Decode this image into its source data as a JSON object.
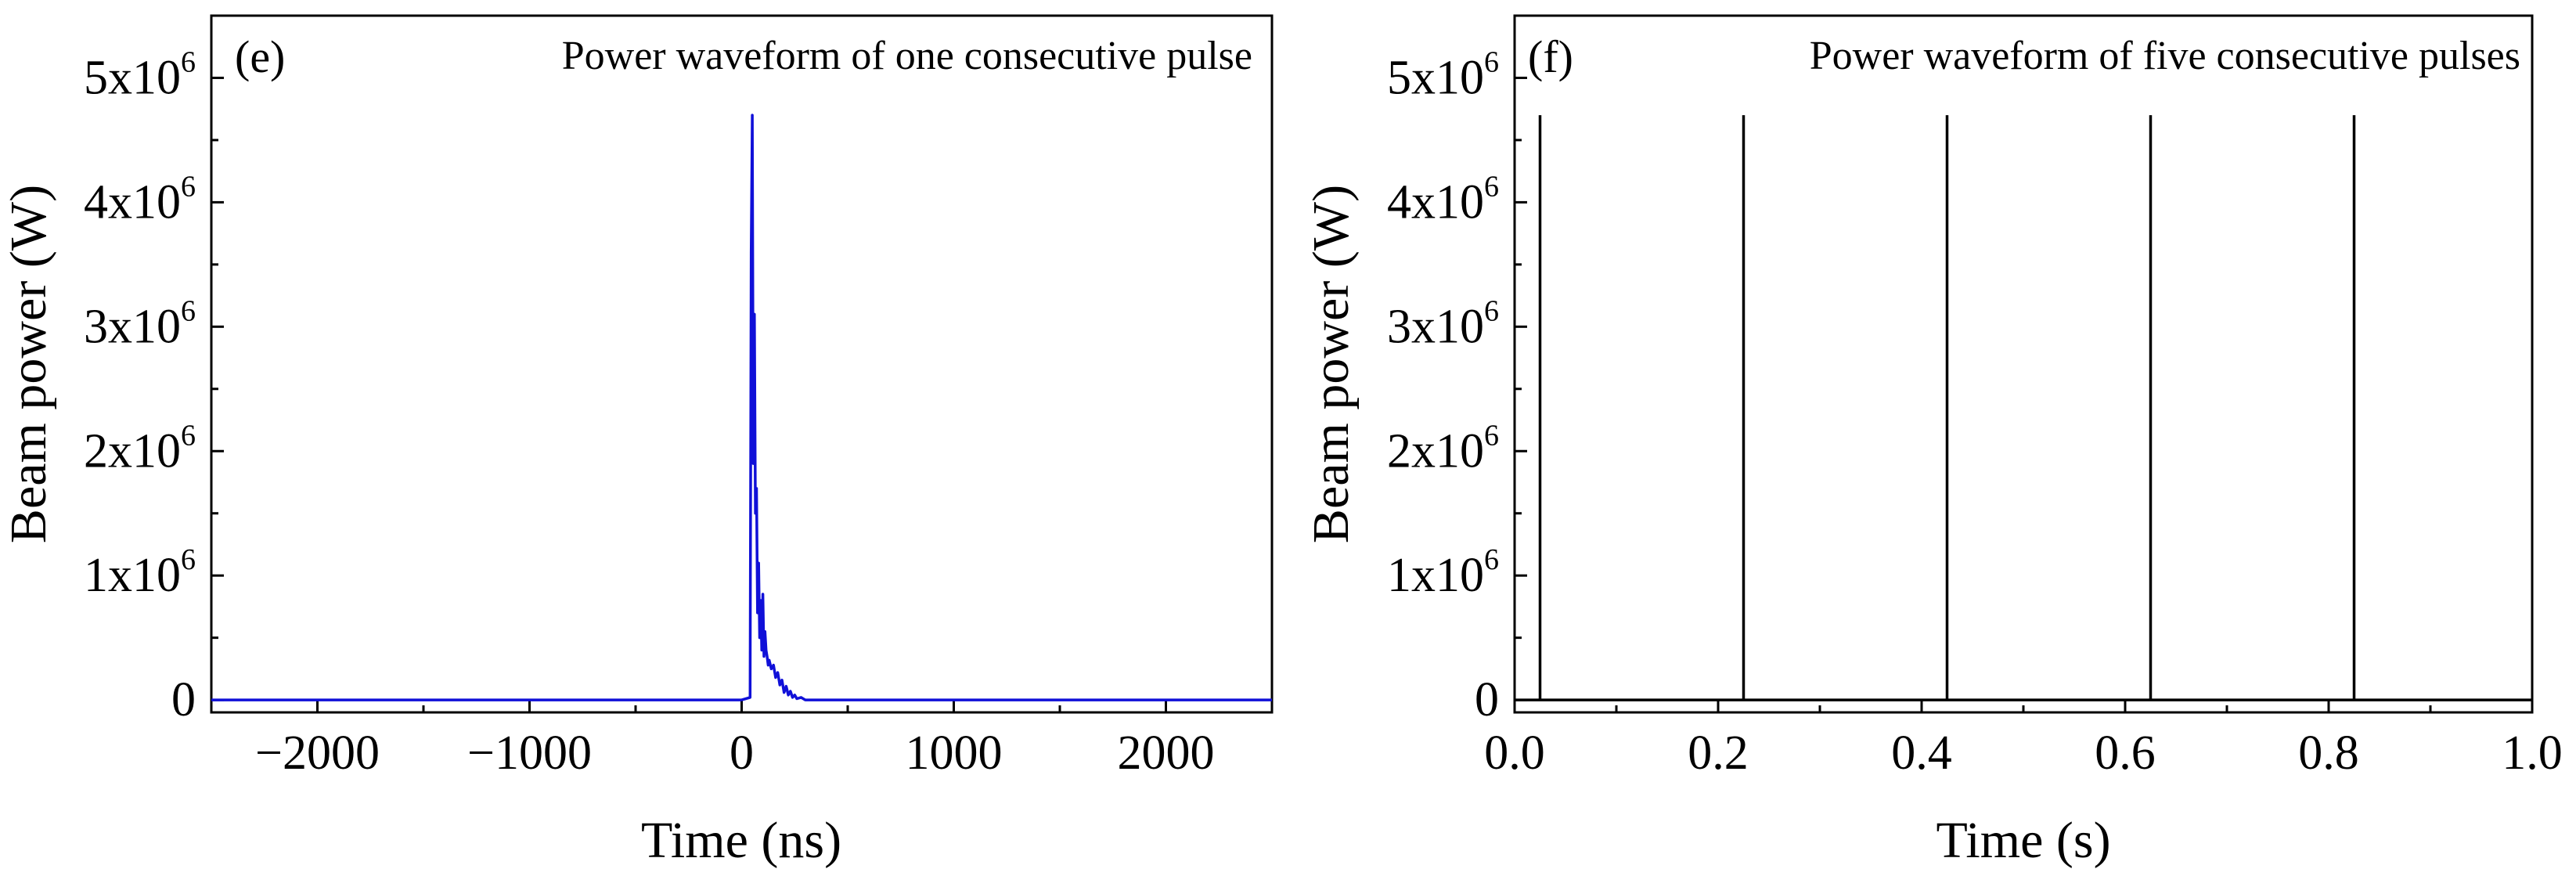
{
  "chart_data": [
    {
      "type": "line",
      "panel_label": "(e)",
      "title": "Power waveform of one consecutive pulse",
      "xlabel": "Time (ns)",
      "ylabel": "Beam power (W)",
      "xlim": [
        -2500,
        2500
      ],
      "ylim": [
        -100000,
        5500000
      ],
      "xticks": [
        -2000,
        -1000,
        0,
        1000,
        2000
      ],
      "xtick_labels": [
        "−2000",
        "−1000",
        "0",
        "1000",
        "2000"
      ],
      "yticks": [
        0,
        1000000,
        2000000,
        3000000,
        4000000,
        5000000
      ],
      "ytick_labels": [
        {
          "base": "0",
          "exp": ""
        },
        {
          "base": "1x10",
          "exp": "6"
        },
        {
          "base": "2x10",
          "exp": "6"
        },
        {
          "base": "3x10",
          "exp": "6"
        },
        {
          "base": "4x10",
          "exp": "6"
        },
        {
          "base": "5x10",
          "exp": "6"
        }
      ],
      "line_color": "#1010d8",
      "series": [
        {
          "x": [
            -2500,
            0,
            40,
            45,
            50,
            55,
            60,
            65,
            70,
            75,
            80,
            85,
            90,
            95,
            100,
            105,
            110,
            115,
            120,
            125,
            130,
            140,
            150,
            160,
            170,
            180,
            190,
            200,
            210,
            220,
            230,
            240,
            250,
            260,
            280,
            300,
            2500
          ],
          "y": [
            0,
            0,
            20000,
            3600000,
            4700000,
            1900000,
            3100000,
            1500000,
            1700000,
            700000,
            1100000,
            500000,
            800000,
            400000,
            850000,
            350000,
            550000,
            400000,
            350000,
            280000,
            320000,
            250000,
            280000,
            180000,
            220000,
            120000,
            160000,
            60000,
            110000,
            40000,
            70000,
            20000,
            40000,
            10000,
            20000,
            0,
            0
          ]
        }
      ]
    },
    {
      "type": "line",
      "panel_label": "(f)",
      "title": "Power waveform of five consecutive pulses",
      "xlabel": "Time (s)",
      "ylabel": "Beam power (W)",
      "xlim": [
        0,
        1
      ],
      "ylim": [
        -100000,
        5500000
      ],
      "xticks": [
        0.0,
        0.2,
        0.4,
        0.6,
        0.8,
        1.0
      ],
      "xtick_labels": [
        "0.0",
        "0.2",
        "0.4",
        "0.6",
        "0.8",
        "1.0"
      ],
      "yticks": [
        0,
        1000000,
        2000000,
        3000000,
        4000000,
        5000000
      ],
      "ytick_labels": [
        {
          "base": "0",
          "exp": ""
        },
        {
          "base": "1x10",
          "exp": "6"
        },
        {
          "base": "2x10",
          "exp": "6"
        },
        {
          "base": "3x10",
          "exp": "6"
        },
        {
          "base": "4x10",
          "exp": "6"
        },
        {
          "base": "5x10",
          "exp": "6"
        }
      ],
      "line_color": "#000000",
      "pulse_times": [
        0.025,
        0.225,
        0.425,
        0.625,
        0.825
      ],
      "pulse_peak": 4700000
    }
  ]
}
